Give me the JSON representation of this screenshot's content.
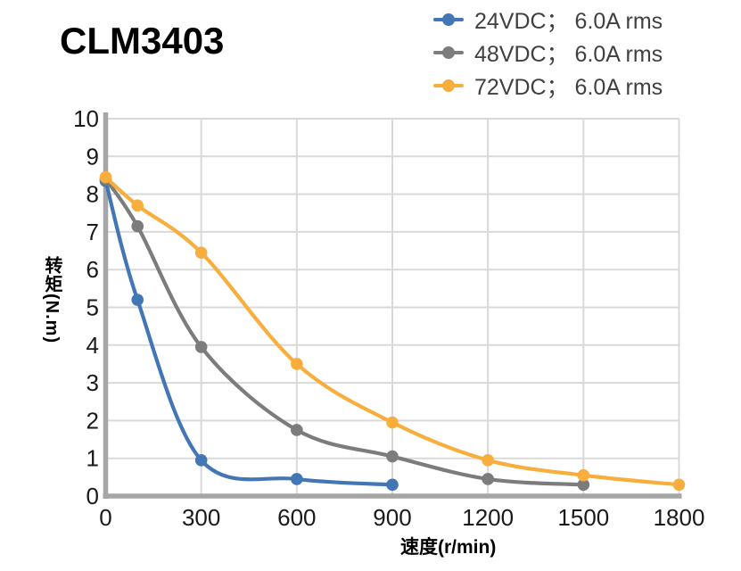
{
  "title": "CLM3403",
  "chart_data": {
    "type": "line",
    "title": "CLM3403",
    "xlabel": "速度(r/min)",
    "ylabel": "转矩(N.m)",
    "xlim": [
      0,
      1800
    ],
    "ylim": [
      0,
      10
    ],
    "x_ticks": [
      0,
      300,
      600,
      900,
      1200,
      1500,
      1800
    ],
    "y_ticks": [
      0,
      1,
      2,
      3,
      4,
      5,
      6,
      7,
      8,
      9,
      10
    ],
    "grid": true,
    "smooth": true,
    "legend_position": "top-right",
    "colors": {
      "grid": "#d9d9d9",
      "axis": "#a6a6a6",
      "tick_text": "#1a1a1a"
    },
    "series": [
      {
        "name": "24VDC； 6.0A rms",
        "color": "#4376b5",
        "points": [
          [
            0,
            8.35
          ],
          [
            100,
            5.2
          ],
          [
            300,
            0.95
          ],
          [
            600,
            0.45
          ],
          [
            900,
            0.3
          ]
        ]
      },
      {
        "name": "48VDC； 6.0A rms",
        "color": "#7c7c7c",
        "points": [
          [
            0,
            8.4
          ],
          [
            100,
            7.15
          ],
          [
            300,
            3.95
          ],
          [
            600,
            1.75
          ],
          [
            900,
            1.05
          ],
          [
            1200,
            0.45
          ],
          [
            1500,
            0.3
          ]
        ]
      },
      {
        "name": "72VDC； 6.0A rms",
        "color": "#f8ae3d",
        "points": [
          [
            0,
            8.45
          ],
          [
            100,
            7.7
          ],
          [
            300,
            6.45
          ],
          [
            600,
            3.5
          ],
          [
            900,
            1.95
          ],
          [
            1200,
            0.95
          ],
          [
            1500,
            0.55
          ],
          [
            1800,
            0.3
          ]
        ]
      }
    ]
  }
}
